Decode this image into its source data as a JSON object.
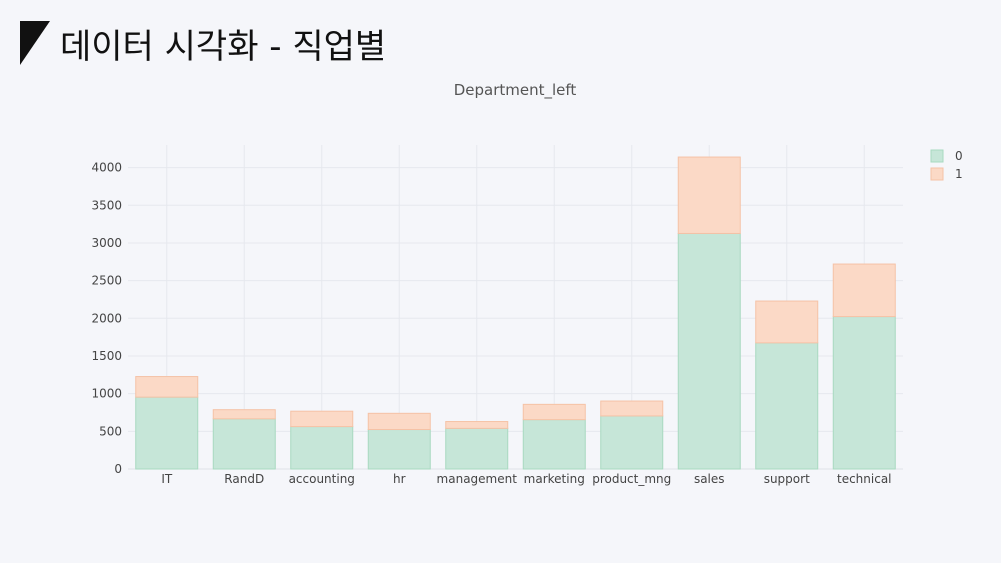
{
  "slide": {
    "title": "데이터 시각화 - 직업별"
  },
  "chart_data": {
    "type": "bar",
    "stacked": true,
    "title": "Department_left",
    "xlabel": "",
    "ylabel": "",
    "ylim": [
      0,
      4300
    ],
    "y_ticks": [
      0,
      500,
      1000,
      1500,
      2000,
      2500,
      3000,
      3500,
      4000
    ],
    "grid": true,
    "legend_position": "top-right",
    "categories": [
      "IT",
      "RandD",
      "accounting",
      "hr",
      "management",
      "marketing",
      "product_mng",
      "sales",
      "support",
      "technical"
    ],
    "series": [
      {
        "name": "0",
        "color": "#c6e6d8",
        "stroke": "#a8d9c0",
        "values": [
          954,
          666,
          563,
          524,
          539,
          655,
          704,
          3126,
          1674,
          2023
        ]
      },
      {
        "name": "1",
        "color": "#fbd9c6",
        "stroke": "#f5c2a6",
        "values": [
          273,
          121,
          204,
          215,
          91,
          203,
          198,
          1014,
          555,
          697
        ]
      }
    ]
  }
}
